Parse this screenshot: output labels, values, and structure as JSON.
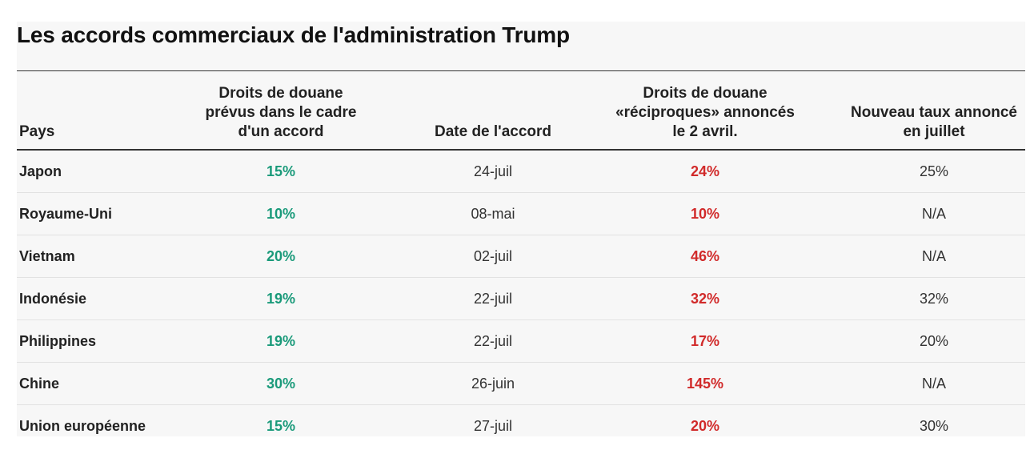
{
  "chart_data": {
    "type": "table",
    "title": "Les accords commerciaux de l'administration Trump",
    "columns": [
      "Pays",
      "Droits de douane\nprévus dans le cadre\nd'un accord",
      "Date de l'accord",
      "Droits de douane\n«réciproques» annoncés\nle 2 avril.",
      "Nouveau taux annoncé\nen juillet"
    ],
    "rows": [
      [
        "Japon",
        "15%",
        "24-juil",
        "24%",
        "25%"
      ],
      [
        "Royaume-Uni",
        "10%",
        "08-mai",
        "10%",
        "N/A"
      ],
      [
        "Vietnam",
        "20%",
        "02-juil",
        "46%",
        "N/A"
      ],
      [
        "Indonésie",
        "19%",
        "22-juil",
        "32%",
        "32%"
      ],
      [
        "Philippines",
        "19%",
        "22-juil",
        "17%",
        "20%"
      ],
      [
        "Chine",
        "30%",
        "26-juin",
        "145%",
        "N/A"
      ],
      [
        "Union européenne",
        "15%",
        "27-juil",
        "20%",
        "30%"
      ]
    ]
  },
  "colors": {
    "accord_rate": "#1a9a7a",
    "reciprocal_rate": "#d12a2a",
    "background": "#f7f7f7"
  }
}
